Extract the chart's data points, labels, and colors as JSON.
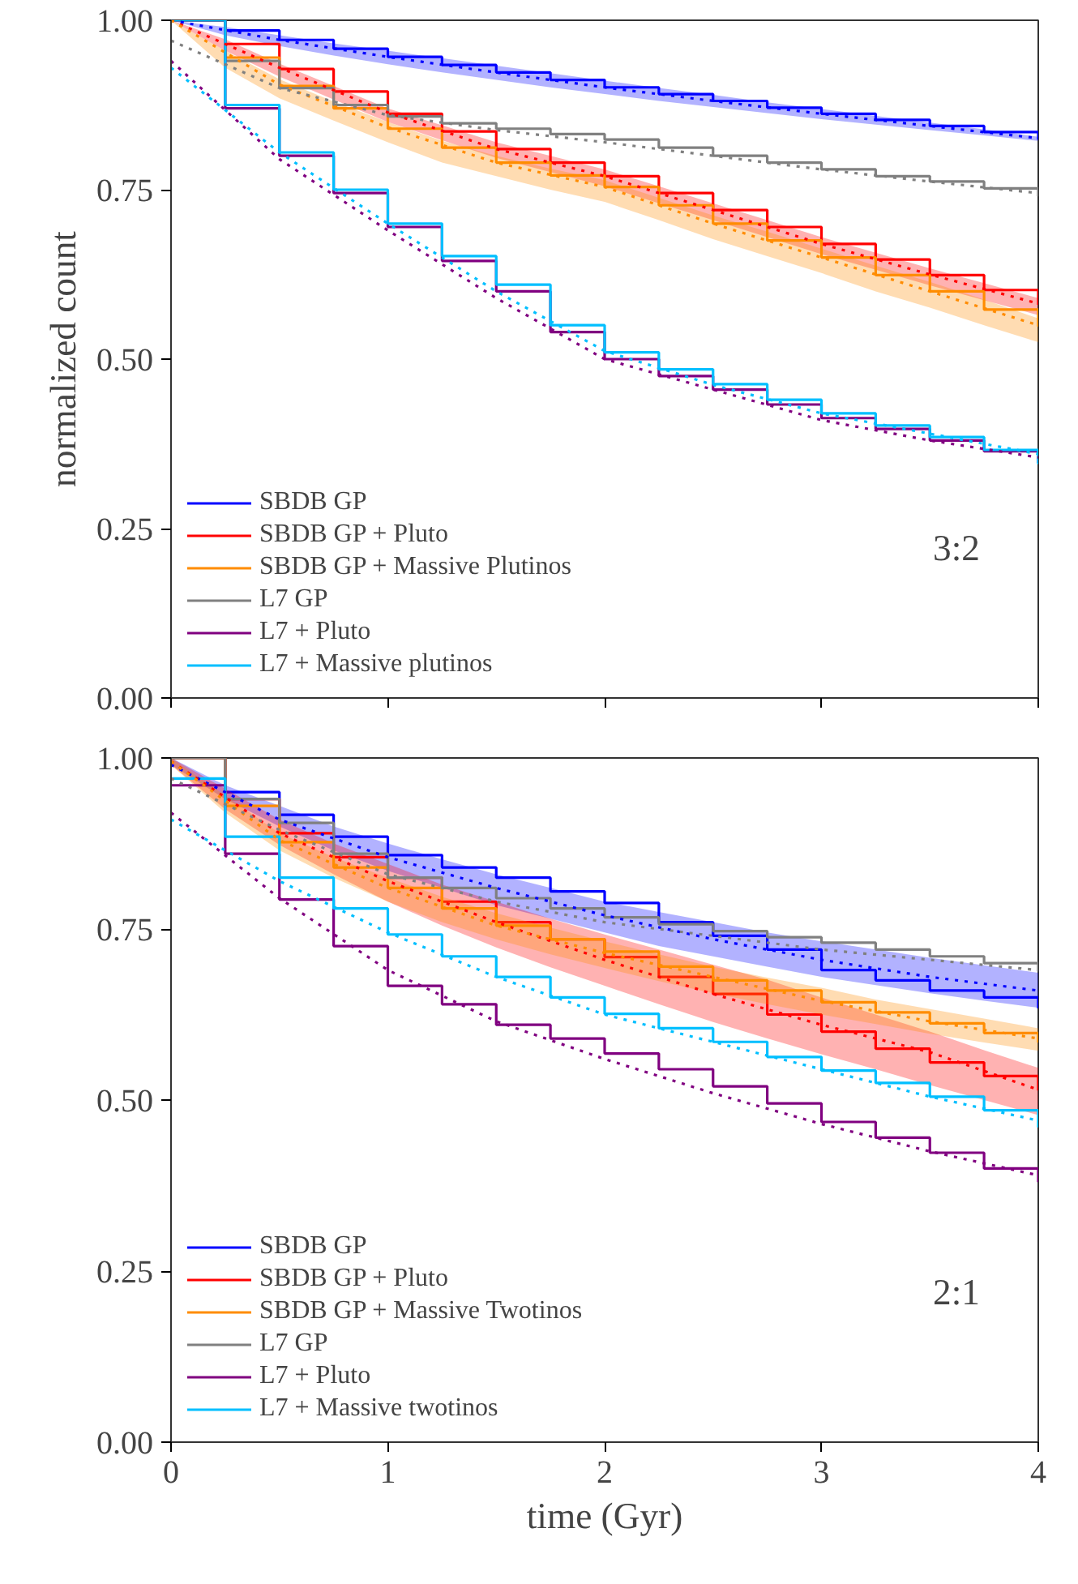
{
  "chart_data": [
    {
      "type": "step",
      "ylabel": "normalized count",
      "annotations": [
        "3:2"
      ],
      "x": [
        0,
        0.25,
        0.5,
        0.75,
        1,
        1.25,
        1.5,
        1.75,
        2,
        2.25,
        2.5,
        2.75,
        3,
        3.25,
        3.5,
        3.75,
        4
      ],
      "xlim": [
        0,
        4
      ],
      "xticks": [
        0,
        1,
        2,
        3,
        4
      ],
      "ylim": [
        0,
        1
      ],
      "yticks": [
        {
          "value": 0,
          "label": "0.00"
        },
        {
          "value": 0.25,
          "label": "0.25"
        },
        {
          "value": 0.5,
          "label": "0.50"
        },
        {
          "value": 0.75,
          "label": "0.75"
        },
        {
          "value": 1,
          "label": "1.00"
        }
      ],
      "tick_labels": "y",
      "grid": false,
      "legend": "bottom left",
      "series": [
        {
          "name": "SBDB GP",
          "color": "#0000ff",
          "values": [
            1.0,
            0.985,
            0.971,
            0.958,
            0.946,
            0.934,
            0.923,
            0.912,
            0.901,
            0.891,
            0.881,
            0.871,
            0.862,
            0.853,
            0.844,
            0.835,
            0.824
          ],
          "lower": [
            1.0,
            0.978,
            0.962,
            0.948,
            0.935,
            0.923,
            0.912,
            0.901,
            0.891,
            0.881,
            0.872,
            0.863,
            0.854,
            0.846,
            0.838,
            0.83,
            0.822
          ],
          "upper": [
            1.0,
            0.99,
            0.978,
            0.966,
            0.955,
            0.944,
            0.933,
            0.922,
            0.911,
            0.9,
            0.89,
            0.879,
            0.869,
            0.859,
            0.849,
            0.839,
            0.828
          ]
        },
        {
          "name": "SBDB GP + Pluto",
          "color": "#ff0000",
          "values": [
            1.0,
            0.965,
            0.928,
            0.895,
            0.862,
            0.836,
            0.81,
            0.79,
            0.77,
            0.745,
            0.72,
            0.695,
            0.67,
            0.647,
            0.624,
            0.602,
            0.58
          ],
          "lower": [
            1.0,
            0.955,
            0.917,
            0.883,
            0.85,
            0.823,
            0.797,
            0.776,
            0.755,
            0.73,
            0.705,
            0.68,
            0.655,
            0.632,
            0.609,
            0.587,
            0.565
          ],
          "upper": [
            1.0,
            0.972,
            0.936,
            0.903,
            0.87,
            0.845,
            0.82,
            0.8,
            0.78,
            0.755,
            0.73,
            0.705,
            0.68,
            0.657,
            0.634,
            0.612,
            0.59
          ]
        },
        {
          "name": "SBDB GP + Massive Plutinos",
          "color": "#ff8c00",
          "values": [
            1.0,
            0.945,
            0.903,
            0.87,
            0.84,
            0.812,
            0.79,
            0.771,
            0.754,
            0.727,
            0.7,
            0.675,
            0.65,
            0.624,
            0.6,
            0.573,
            0.548
          ],
          "lower": [
            1.0,
            0.93,
            0.885,
            0.852,
            0.82,
            0.79,
            0.77,
            0.75,
            0.732,
            0.705,
            0.677,
            0.652,
            0.627,
            0.6,
            0.576,
            0.55,
            0.525
          ],
          "upper": [
            1.0,
            0.955,
            0.913,
            0.88,
            0.85,
            0.822,
            0.8,
            0.781,
            0.764,
            0.738,
            0.712,
            0.688,
            0.663,
            0.638,
            0.614,
            0.588,
            0.56
          ]
        },
        {
          "name": "L7 GP",
          "color": "#808080",
          "values": [
            1.0,
            0.94,
            0.9,
            0.875,
            0.858,
            0.848,
            0.84,
            0.832,
            0.824,
            0.812,
            0.8,
            0.79,
            0.78,
            0.77,
            0.762,
            0.752,
            0.74
          ]
        },
        {
          "name": "L7 + Pluto",
          "color": "#800080",
          "values": [
            1.0,
            0.87,
            0.8,
            0.745,
            0.695,
            0.645,
            0.6,
            0.54,
            0.5,
            0.475,
            0.455,
            0.433,
            0.413,
            0.397,
            0.38,
            0.364,
            0.347
          ]
        },
        {
          "name": "L7 + Massive plutinos",
          "color": "#00bfff",
          "values": [
            1.0,
            0.875,
            0.805,
            0.75,
            0.7,
            0.652,
            0.61,
            0.55,
            0.51,
            0.485,
            0.463,
            0.44,
            0.42,
            0.402,
            0.385,
            0.366,
            0.345
          ]
        },
        {
          "type": "line",
          "line_style": "dotted",
          "color": "#0000ff",
          "x": [
            0,
            0.5,
            1,
            1.5,
            2,
            2.5,
            3,
            3.5,
            4
          ],
          "values": [
            1.0,
            0.971,
            0.946,
            0.923,
            0.901,
            0.881,
            0.862,
            0.844,
            0.826
          ]
        },
        {
          "type": "line",
          "line_style": "dotted",
          "color": "#ff0000",
          "x": [
            0,
            0.5,
            1,
            1.5,
            2,
            2.5,
            3,
            3.5,
            4
          ],
          "values": [
            1.0,
            0.93,
            0.864,
            0.81,
            0.77,
            0.72,
            0.67,
            0.625,
            0.582
          ]
        },
        {
          "type": "line",
          "line_style": "dotted",
          "color": "#ff8c00",
          "x": [
            0,
            0.5,
            1,
            1.5,
            2,
            2.5,
            3,
            3.5,
            4
          ],
          "values": [
            1.0,
            0.905,
            0.842,
            0.79,
            0.754,
            0.7,
            0.65,
            0.6,
            0.55
          ]
        },
        {
          "type": "line",
          "line_style": "dotted",
          "color": "#808080",
          "x": [
            0,
            0.5,
            1,
            1.5,
            2,
            2.5,
            3,
            3.5,
            4
          ],
          "values": [
            0.97,
            0.9,
            0.86,
            0.838,
            0.82,
            0.8,
            0.78,
            0.762,
            0.745
          ]
        },
        {
          "type": "line",
          "line_style": "dotted",
          "color": "#800080",
          "x": [
            0,
            0.5,
            1,
            1.5,
            2,
            2.5,
            3,
            3.5,
            4
          ],
          "values": [
            0.94,
            0.795,
            0.69,
            0.59,
            0.5,
            0.455,
            0.41,
            0.38,
            0.355
          ]
        },
        {
          "type": "line",
          "line_style": "dotted",
          "color": "#00bfff",
          "x": [
            0,
            0.5,
            1,
            1.5,
            2,
            2.5,
            3,
            3.5,
            4
          ],
          "values": [
            0.93,
            0.805,
            0.7,
            0.6,
            0.512,
            0.462,
            0.42,
            0.39,
            0.36
          ]
        }
      ]
    },
    {
      "type": "step",
      "xlabel": "time (Gyr)",
      "annotations": [
        "2:1"
      ],
      "x": [
        0,
        0.25,
        0.5,
        0.75,
        1,
        1.25,
        1.5,
        1.75,
        2,
        2.25,
        2.5,
        2.75,
        3,
        3.25,
        3.5,
        3.75,
        4
      ],
      "xlim": [
        0,
        4
      ],
      "xticks": [
        0,
        1,
        2,
        3,
        4
      ],
      "ylim": [
        0,
        1
      ],
      "yticks": [
        {
          "value": 0,
          "label": "0.00"
        },
        {
          "value": 0.25,
          "label": "0.25"
        },
        {
          "value": 0.5,
          "label": "0.50"
        },
        {
          "value": 0.75,
          "label": "0.75"
        },
        {
          "value": 1,
          "label": "1.00"
        }
      ],
      "grid": false,
      "legend": "bottom left",
      "series": [
        {
          "name": "SBDB GP",
          "color": "#0000ff",
          "values": [
            1.0,
            0.95,
            0.917,
            0.885,
            0.858,
            0.84,
            0.825,
            0.805,
            0.788,
            0.76,
            0.74,
            0.72,
            0.69,
            0.675,
            0.66,
            0.65,
            0.634
          ],
          "lower": [
            0.99,
            0.94,
            0.9,
            0.865,
            0.835,
            0.81,
            0.785,
            0.765,
            0.745,
            0.725,
            0.71,
            0.695,
            0.68,
            0.668,
            0.656,
            0.645,
            0.635
          ],
          "upper": [
            1.0,
            0.96,
            0.93,
            0.9,
            0.875,
            0.852,
            0.83,
            0.81,
            0.79,
            0.775,
            0.76,
            0.745,
            0.732,
            0.72,
            0.708,
            0.697,
            0.686
          ]
        },
        {
          "name": "SBDB GP + Pluto",
          "color": "#ff0000",
          "values": [
            1.0,
            0.94,
            0.89,
            0.855,
            0.825,
            0.79,
            0.76,
            0.735,
            0.709,
            0.68,
            0.655,
            0.625,
            0.6,
            0.575,
            0.555,
            0.535,
            0.514
          ],
          "lower": [
            0.99,
            0.925,
            0.873,
            0.83,
            0.79,
            0.755,
            0.723,
            0.694,
            0.667,
            0.64,
            0.614,
            0.59,
            0.567,
            0.545,
            0.522,
            0.5,
            0.478
          ],
          "upper": [
            1.0,
            0.955,
            0.91,
            0.875,
            0.845,
            0.815,
            0.79,
            0.765,
            0.742,
            0.72,
            0.698,
            0.676,
            0.65,
            0.625,
            0.6,
            0.573,
            0.547
          ]
        },
        {
          "name": "SBDB GP + Massive Twotinos",
          "color": "#ff8c00",
          "values": [
            1.0,
            0.93,
            0.877,
            0.84,
            0.81,
            0.78,
            0.755,
            0.735,
            0.717,
            0.695,
            0.675,
            0.66,
            0.643,
            0.628,
            0.612,
            0.598,
            0.584
          ],
          "lower": [
            0.99,
            0.92,
            0.865,
            0.825,
            0.79,
            0.76,
            0.735,
            0.713,
            0.693,
            0.674,
            0.656,
            0.64,
            0.625,
            0.611,
            0.597,
            0.584,
            0.572
          ],
          "upper": [
            1.0,
            0.945,
            0.89,
            0.855,
            0.825,
            0.797,
            0.773,
            0.752,
            0.732,
            0.713,
            0.695,
            0.679,
            0.664,
            0.647,
            0.633,
            0.619,
            0.605
          ]
        },
        {
          "name": "L7 GP",
          "color": "#808080",
          "values": [
            1.0,
            0.94,
            0.905,
            0.86,
            0.825,
            0.81,
            0.795,
            0.78,
            0.767,
            0.757,
            0.747,
            0.738,
            0.73,
            0.72,
            0.71,
            0.7,
            0.688
          ]
        },
        {
          "name": "L7 + Pluto",
          "color": "#800080",
          "values": [
            0.96,
            0.86,
            0.793,
            0.725,
            0.667,
            0.64,
            0.61,
            0.59,
            0.568,
            0.545,
            0.52,
            0.495,
            0.468,
            0.445,
            0.423,
            0.4,
            0.38
          ]
        },
        {
          "name": "L7 + Massive twotinos",
          "color": "#00bfff",
          "values": [
            0.97,
            0.885,
            0.825,
            0.78,
            0.742,
            0.71,
            0.68,
            0.65,
            0.626,
            0.605,
            0.585,
            0.563,
            0.543,
            0.525,
            0.505,
            0.485,
            0.46
          ]
        },
        {
          "type": "line",
          "line_style": "dotted",
          "color": "#0000ff",
          "x": [
            0,
            0.5,
            1,
            1.5,
            2,
            2.5,
            3,
            3.5,
            4
          ],
          "values": [
            0.99,
            0.91,
            0.855,
            0.81,
            0.77,
            0.735,
            0.705,
            0.68,
            0.66
          ]
        },
        {
          "type": "line",
          "line_style": "dotted",
          "color": "#ff0000",
          "x": [
            0,
            0.5,
            1,
            1.5,
            2,
            2.5,
            3,
            3.5,
            4
          ],
          "values": [
            0.995,
            0.89,
            0.82,
            0.76,
            0.705,
            0.655,
            0.61,
            0.57,
            0.515
          ]
        },
        {
          "type": "line",
          "line_style": "dotted",
          "color": "#ff8c00",
          "x": [
            0,
            0.5,
            1,
            1.5,
            2,
            2.5,
            3,
            3.5,
            4
          ],
          "values": [
            0.995,
            0.88,
            0.81,
            0.755,
            0.715,
            0.68,
            0.645,
            0.615,
            0.59
          ]
        },
        {
          "type": "line",
          "line_style": "dotted",
          "color": "#808080",
          "x": [
            0,
            0.5,
            1,
            1.5,
            2,
            2.5,
            3,
            3.5,
            4
          ],
          "values": [
            0.97,
            0.895,
            0.83,
            0.79,
            0.76,
            0.74,
            0.72,
            0.705,
            0.69
          ]
        },
        {
          "type": "line",
          "line_style": "dotted",
          "color": "#00bfff",
          "x": [
            0,
            0.5,
            1,
            1.5,
            2,
            2.5,
            3,
            3.5,
            4
          ],
          "values": [
            0.91,
            0.82,
            0.745,
            0.68,
            0.625,
            0.585,
            0.545,
            0.505,
            0.47
          ]
        },
        {
          "type": "line",
          "line_style": "dotted",
          "color": "#800080",
          "x": [
            0,
            0.5,
            1,
            1.5,
            2,
            2.5,
            3,
            3.5,
            4
          ],
          "values": [
            0.92,
            0.795,
            0.69,
            0.615,
            0.56,
            0.51,
            0.465,
            0.425,
            0.39
          ]
        }
      ]
    }
  ]
}
